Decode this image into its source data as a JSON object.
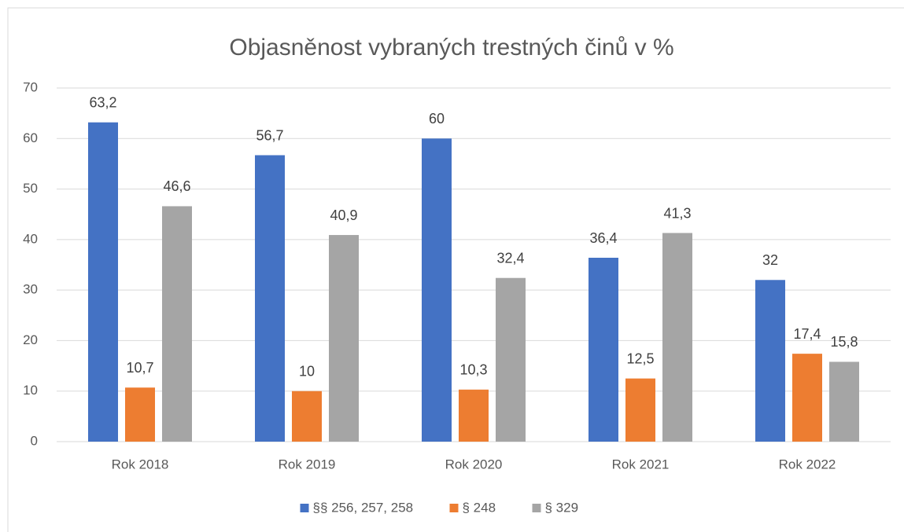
{
  "chart_data": {
    "type": "bar",
    "title": "Objasněnost vybraných trestných činů v %",
    "categories": [
      "Rok 2018",
      "Rok 2019",
      "Rok 2020",
      "Rok 2021",
      "Rok 2022"
    ],
    "series": [
      {
        "name": "§§ 256, 257, 258",
        "color": "#4472c4",
        "values": [
          63.2,
          56.7,
          60,
          36.4,
          32
        ],
        "value_labels": [
          "63,2",
          "56,7",
          "60",
          "36,4",
          "32"
        ]
      },
      {
        "name": "§ 248",
        "color": "#ed7d31",
        "values": [
          10.7,
          10,
          10.3,
          12.5,
          17.4
        ],
        "value_labels": [
          "10,7",
          "10",
          "10,3",
          "12,5",
          "17,4"
        ]
      },
      {
        "name": "§ 329",
        "color": "#a5a5a5",
        "values": [
          46.6,
          40.9,
          32.4,
          41.3,
          15.8
        ],
        "value_labels": [
          "46,6",
          "40,9",
          "32,4",
          "41,3",
          "15,8"
        ]
      }
    ],
    "ylim": [
      0,
      70
    ],
    "yticks": [
      0,
      10,
      20,
      30,
      40,
      50,
      60,
      70
    ],
    "grid": true,
    "legend": "bottom"
  }
}
